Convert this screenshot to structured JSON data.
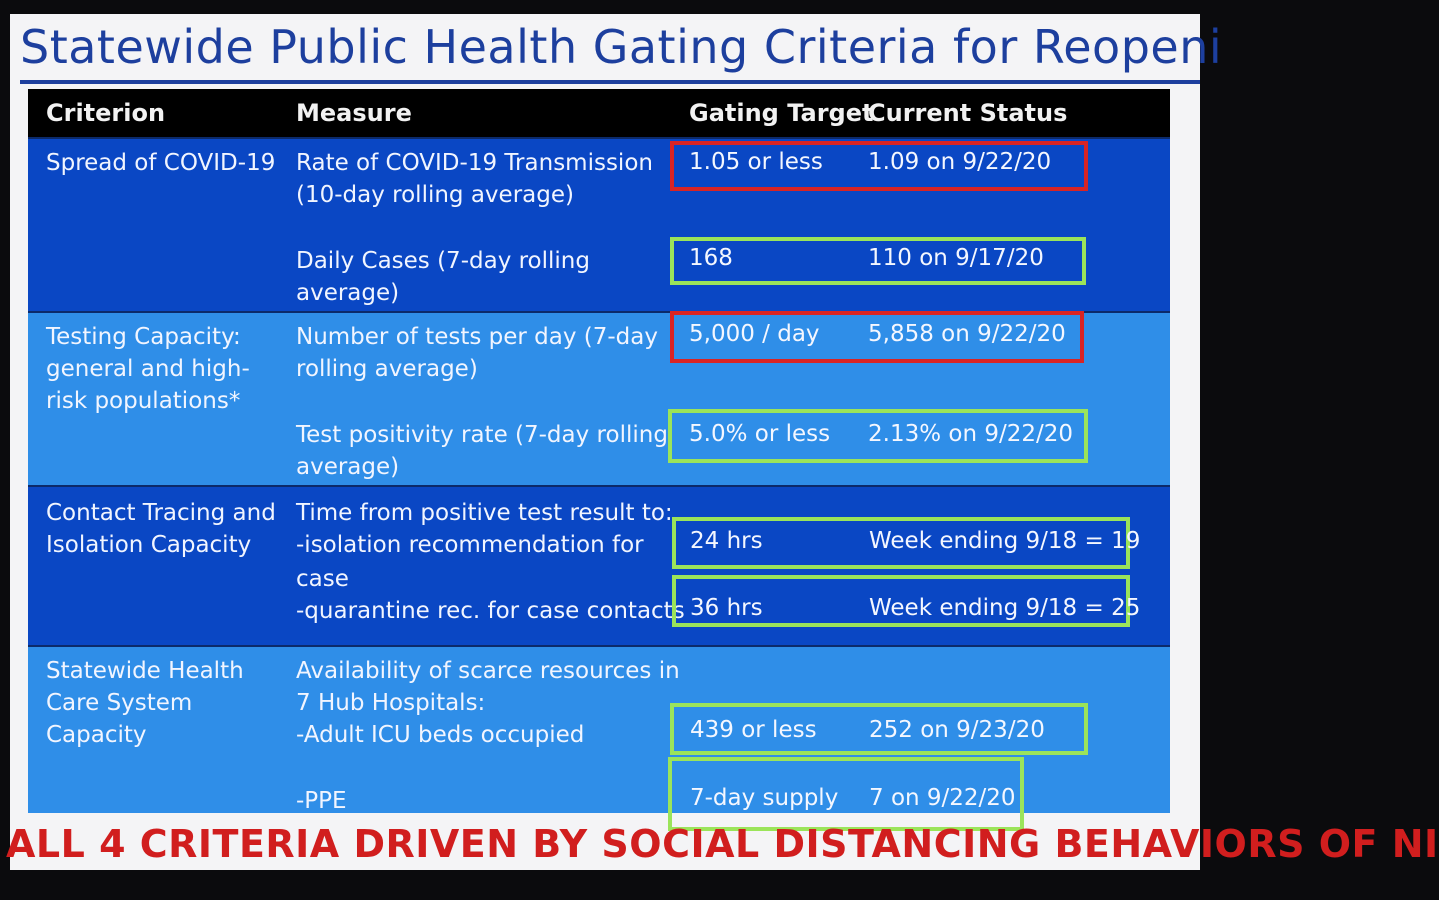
{
  "slide": {
    "title": "Statewide Public Health Gating Criteria for Reopeni",
    "banner": "ALL 4 CRITERIA DRIVEN BY SOCIAL DISTANCING BEHAVIORS OF NI"
  },
  "table": {
    "headers": {
      "criterion": "Criterion",
      "measure": "Measure",
      "target": "Gating Target",
      "status": "Current Status"
    },
    "rows": [
      {
        "criterion_lines": [
          "Spread of COVID-19"
        ],
        "measures": [
          {
            "lines": [
              "Rate of COVID-19 Transmission",
              "(10-day rolling average)"
            ],
            "target": "1.05 or less",
            "status": "1.09 on 9/22/20",
            "box_color": "red"
          },
          {
            "lines": [
              "Daily Cases (7-day rolling",
              "average)"
            ],
            "target": "168",
            "status": "110 on 9/17/20",
            "box_color": "green"
          }
        ]
      },
      {
        "criterion_lines": [
          "Testing Capacity:",
          "general and high-",
          "risk populations*"
        ],
        "measures": [
          {
            "lines": [
              "Number of tests per day (7-day",
              "rolling average)"
            ],
            "target": "5,000 / day",
            "status": "5,858 on 9/22/20",
            "box_color": "red"
          },
          {
            "lines": [
              "Test positivity rate  (7-day rolling",
              "average)"
            ],
            "target": "5.0% or less",
            "status": "2.13% on 9/22/20",
            "box_color": "green"
          }
        ]
      },
      {
        "criterion_lines": [
          "Contact Tracing and",
          "Isolation Capacity"
        ],
        "intro": "Time from positive test result to:",
        "measures": [
          {
            "lines": [
              "-isolation recommendation for",
              "case"
            ],
            "target": "24 hrs",
            "status": "Week ending 9/18 = 19",
            "box_color": "green"
          },
          {
            "lines": [
              "-quarantine rec. for case contacts"
            ],
            "target": "36 hrs",
            "status": "Week ending 9/18 = 25",
            "box_color": "green"
          }
        ]
      },
      {
        "criterion_lines": [
          "Statewide Health",
          "Care System",
          "Capacity"
        ],
        "intro_lines": [
          "Availability of scarce resources in",
          "7 Hub Hospitals:"
        ],
        "measures": [
          {
            "lines": [
              "-Adult ICU beds occupied"
            ],
            "target": "439 or less",
            "status": "252 on 9/23/20",
            "box_color": "green"
          },
          {
            "lines": [
              "-PPE"
            ],
            "target": "7-day supply",
            "status": "7 on 9/22/20",
            "box_color": "green"
          }
        ]
      }
    ]
  },
  "colors": {
    "title_blue": "#1d3f9e",
    "row_dark_blue": "#0a47c4",
    "row_light_blue": "#2f8ee8",
    "box_red": "#d92424",
    "box_green": "#9be45a",
    "banner_red": "#d11e1e"
  }
}
